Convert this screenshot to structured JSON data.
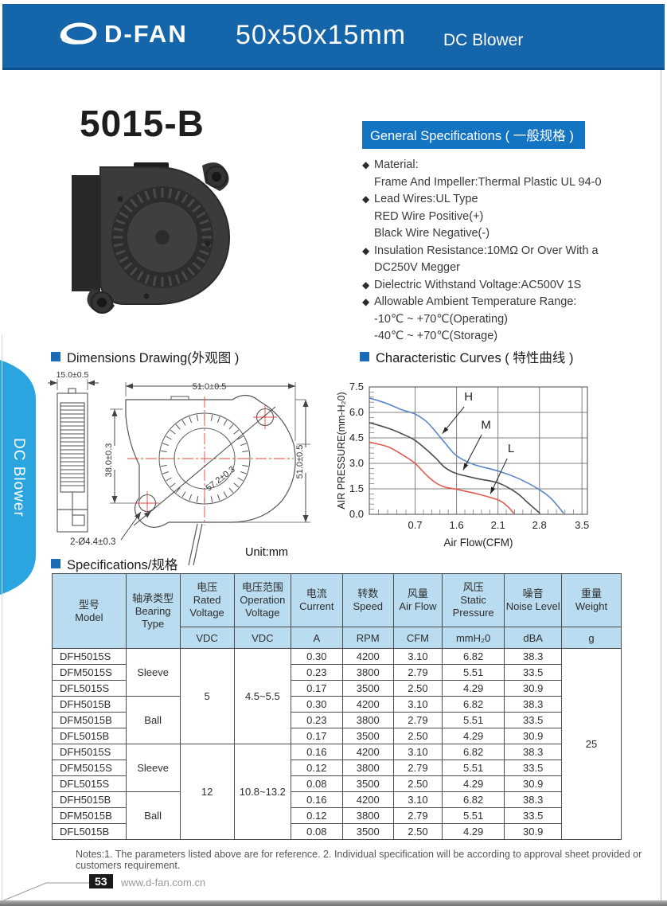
{
  "header": {
    "logo_text": "D-FAN",
    "size": "50x50x15mm",
    "product_type": "DC Blower"
  },
  "side_tab": {
    "label": "DC Blower"
  },
  "model_title": "5015-B",
  "general_specs": {
    "title": "General Specifications ( 一般规格 )",
    "items": [
      {
        "bullet": true,
        "text": "Material:"
      },
      {
        "bullet": false,
        "text": "Frame And Impeller:Thermal Plastic UL 94-0"
      },
      {
        "bullet": true,
        "text": "Lead Wires:UL Type"
      },
      {
        "bullet": false,
        "text": "RED Wire Positive(+)"
      },
      {
        "bullet": false,
        "text": "Black Wire Negative(-)"
      },
      {
        "bullet": true,
        "text": "Insulation Resistance:10MΩ Or Over With a"
      },
      {
        "bullet": false,
        "text": "DC250V Megger"
      },
      {
        "bullet": true,
        "text": "Dielectric Withstand Voltage:AC500V 1S"
      },
      {
        "bullet": true,
        "text": "Allowable Ambient Temperature Range:"
      },
      {
        "bullet": false,
        "text": "-10℃ ~ +70℃(Operating)"
      },
      {
        "bullet": false,
        "text": "-40℃ ~ +70℃(Storage)"
      }
    ]
  },
  "dimensions": {
    "title": "Dimensions Drawing(外观图 )",
    "labels": {
      "side_width": "15.0±0.5",
      "top": "51.0±0.5",
      "left": "38.0±0.3",
      "right": "51.0±0.5",
      "diagonal": "57.2±0.3",
      "holes": "2-Ø4.4±0.3",
      "unit": "Unit:mm"
    }
  },
  "curves_title": "Characteristic Curves ( 特性曲线 )",
  "chart_data": {
    "type": "line",
    "title": "Characteristic Curves ( 特性曲线 )",
    "xlabel": "Air Flow(CFM)",
    "ylabel": "AIR PRESSURE(mm-H₂0)",
    "x_ticks": [
      0.7,
      1.6,
      2.1,
      2.8,
      3.5
    ],
    "x_tick_pos": [
      0.21,
      0.4,
      0.59,
      0.78,
      0.975
    ],
    "y_ticks": [
      0.0,
      1.5,
      3.0,
      4.5,
      6.0,
      7.5
    ],
    "ylim": [
      0,
      7.5
    ],
    "grid": true,
    "series": [
      {
        "name": "H",
        "color": "#5c86c6",
        "points": [
          [
            0,
            6.85
          ],
          [
            0.25,
            6.55
          ],
          [
            0.5,
            6.15
          ],
          [
            0.7,
            5.9
          ],
          [
            0.95,
            5.45
          ],
          [
            1.15,
            4.85
          ],
          [
            1.35,
            4.2
          ],
          [
            1.6,
            3.45
          ],
          [
            1.8,
            2.95
          ],
          [
            2.1,
            2.55
          ],
          [
            2.45,
            2.1
          ],
          [
            2.8,
            1.45
          ],
          [
            3.0,
            0.9
          ],
          [
            3.2,
            0.05
          ]
        ]
      },
      {
        "name": "M",
        "color": "#4d4d4d",
        "points": [
          [
            0,
            5.4
          ],
          [
            0.3,
            5.05
          ],
          [
            0.55,
            4.65
          ],
          [
            0.7,
            4.35
          ],
          [
            0.95,
            3.8
          ],
          [
            1.15,
            3.3
          ],
          [
            1.35,
            2.75
          ],
          [
            1.6,
            2.4
          ],
          [
            1.85,
            2.1
          ],
          [
            2.1,
            1.85
          ],
          [
            2.4,
            1.3
          ],
          [
            2.6,
            0.7
          ],
          [
            2.81,
            0.05
          ]
        ]
      },
      {
        "name": "L",
        "color": "#e0594f",
        "points": [
          [
            0,
            4.25
          ],
          [
            0.3,
            3.95
          ],
          [
            0.55,
            3.4
          ],
          [
            0.7,
            3.0
          ],
          [
            0.95,
            2.3
          ],
          [
            1.15,
            1.85
          ],
          [
            1.35,
            1.6
          ],
          [
            1.6,
            1.47
          ],
          [
            1.85,
            1.2
          ],
          [
            2.1,
            0.85
          ],
          [
            2.25,
            0.5
          ],
          [
            2.37,
            0.05
          ]
        ]
      }
    ],
    "annotations": [
      {
        "label": "H",
        "text_at": [
          0.455,
          6.7
        ],
        "arrow_from": [
          0.435,
          6.33
        ],
        "arrow_to": [
          0.335,
          4.75
        ]
      },
      {
        "label": "M",
        "text_at": [
          0.535,
          5.05
        ],
        "arrow_from": [
          0.515,
          4.68
        ],
        "arrow_to": [
          0.43,
          2.6
        ]
      },
      {
        "label": "L",
        "text_at": [
          0.65,
          3.65
        ],
        "arrow_from": [
          0.632,
          3.28
        ],
        "arrow_to": [
          0.555,
          1.2
        ]
      }
    ]
  },
  "spec_table": {
    "title": "Specifications/规格",
    "columns": [
      {
        "cn": "型号",
        "en": "Model",
        "unit": null
      },
      {
        "cn": "轴承类型",
        "en": "Bearing Type",
        "unit": null
      },
      {
        "cn": "电压",
        "en": "Rated Voltage",
        "unit": "VDC"
      },
      {
        "cn": "电压范围",
        "en": "Operation Voltage",
        "unit": "VDC"
      },
      {
        "cn": "电流",
        "en": "Current",
        "unit": "A"
      },
      {
        "cn": "转数",
        "en": "Speed",
        "unit": "RPM"
      },
      {
        "cn": "风量",
        "en": "Air Flow",
        "unit": "CFM"
      },
      {
        "cn": "风压",
        "en": "Static Pressure",
        "unit": "mmH₂0"
      },
      {
        "cn": "噪音",
        "en": "Noise Level",
        "unit": "dBA"
      },
      {
        "cn": "重量",
        "en": "Weight",
        "unit": "g"
      }
    ],
    "weight": "25",
    "groups": [
      {
        "rated_voltage": "5",
        "operation_voltage": "4.5~5.5",
        "subgroups": [
          {
            "bearing": "Sleeve",
            "rows": [
              {
                "model": "DFH5015S",
                "current": "0.30",
                "speed": "4200",
                "air_flow": "3.10",
                "pressure": "6.82",
                "noise": "38.3"
              },
              {
                "model": "DFM5015S",
                "current": "0.23",
                "speed": "3800",
                "air_flow": "2.79",
                "pressure": "5.51",
                "noise": "33.5"
              },
              {
                "model": "DFL5015S",
                "current": "0.17",
                "speed": "3500",
                "air_flow": "2.50",
                "pressure": "4.29",
                "noise": "30.9"
              }
            ]
          },
          {
            "bearing": "Ball",
            "rows": [
              {
                "model": "DFH5015B",
                "current": "0.30",
                "speed": "4200",
                "air_flow": "3.10",
                "pressure": "6.82",
                "noise": "38.3"
              },
              {
                "model": "DFM5015B",
                "current": "0.23",
                "speed": "3800",
                "air_flow": "2.79",
                "pressure": "5.51",
                "noise": "33.5"
              },
              {
                "model": "DFL5015B",
                "current": "0.17",
                "speed": "3500",
                "air_flow": "2.50",
                "pressure": "4.29",
                "noise": "30.9"
              }
            ]
          }
        ]
      },
      {
        "rated_voltage": "12",
        "operation_voltage": "10.8~13.2",
        "subgroups": [
          {
            "bearing": "Sleeve",
            "rows": [
              {
                "model": "DFH5015S",
                "current": "0.16",
                "speed": "4200",
                "air_flow": "3.10",
                "pressure": "6.82",
                "noise": "38.3"
              },
              {
                "model": "DFM5015S",
                "current": "0.12",
                "speed": "3800",
                "air_flow": "2.79",
                "pressure": "5.51",
                "noise": "33.5"
              },
              {
                "model": "DFL5015S",
                "current": "0.08",
                "speed": "3500",
                "air_flow": "2.50",
                "pressure": "4.29",
                "noise": "30.9"
              }
            ]
          },
          {
            "bearing": "Ball",
            "rows": [
              {
                "model": "DFH5015B",
                "current": "0.16",
                "speed": "4200",
                "air_flow": "3.10",
                "pressure": "6.82",
                "noise": "38.3"
              },
              {
                "model": "DFM5015B",
                "current": "0.12",
                "speed": "3800",
                "air_flow": "2.79",
                "pressure": "5.51",
                "noise": "33.5"
              },
              {
                "model": "DFL5015B",
                "current": "0.08",
                "speed": "3500",
                "air_flow": "2.50",
                "pressure": "4.29",
                "noise": "30.9"
              }
            ]
          }
        ]
      }
    ]
  },
  "notes": "Notes:1. The parameters listed above are for reference.   2. Individual specification will be according to approval sheet provided or customers requirement.",
  "footer": {
    "page_number": "53",
    "website": "www.d-fan.com.cn"
  },
  "colors": {
    "header_blue": "#1565ab",
    "bar_blue": "#1474c4",
    "tab_blue": "#2aa5df",
    "table_header_blue": "#b9dcf0",
    "curve_h": "#5c86c6",
    "curve_m": "#4d4d4d",
    "curve_l": "#e0594f",
    "drawing_red": "#e04840"
  }
}
